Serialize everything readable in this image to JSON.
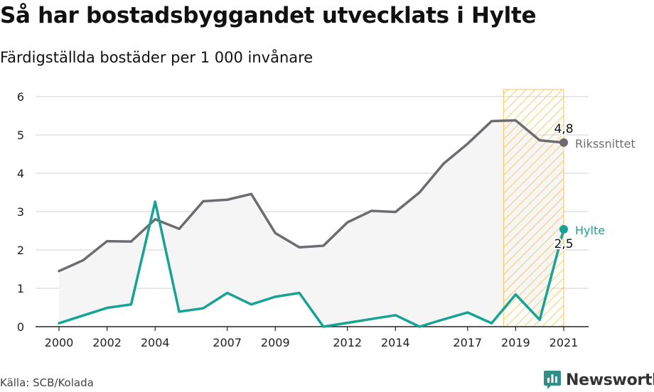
{
  "header": {
    "title": "Så har bostadsbyggandet utvecklats i Hylte",
    "subtitle": "Färdigställda bostäder per 1 000 invånare"
  },
  "footer": {
    "source": "Källa: SCB/Kolada",
    "brand": "Newsworthy"
  },
  "colors": {
    "riket": "#6d6b70",
    "hylte": "#16a394",
    "area_fill": "#f5f5f6",
    "highlight_stroke": "#f5c451",
    "grid": "#d9d9d9",
    "brand_icon": "#2e8f86"
  },
  "icons": {
    "brand": "newsworthy-logo-icon"
  },
  "chart_data": {
    "type": "line",
    "title": "Så har bostadsbyggandet utvecklats i Hylte",
    "subtitle": "Färdigställda bostäder per 1 000 invånare",
    "xlabel": "",
    "ylabel": "",
    "x": [
      2000,
      2001,
      2002,
      2003,
      2004,
      2005,
      2006,
      2007,
      2008,
      2009,
      2010,
      2011,
      2012,
      2013,
      2014,
      2015,
      2016,
      2017,
      2018,
      2019,
      2020,
      2021
    ],
    "x_tick_labels": [
      "2000",
      "2002",
      "2004",
      "2007",
      "2009",
      "2012",
      "2014",
      "2017",
      "2019",
      "2021"
    ],
    "ylim": [
      0,
      6
    ],
    "y_ticks": [
      0,
      1,
      2,
      3,
      4,
      5,
      6
    ],
    "grid": true,
    "highlight_range": [
      2019,
      2021
    ],
    "series": [
      {
        "name": "Rikssnittet",
        "values": [
          1.45,
          1.73,
          2.23,
          2.22,
          2.8,
          2.55,
          3.27,
          3.31,
          3.46,
          2.44,
          2.07,
          2.11,
          2.72,
          3.02,
          2.99,
          3.5,
          4.25,
          4.77,
          5.36,
          5.38,
          4.86,
          4.8
        ],
        "end_label": "4,8"
      },
      {
        "name": "Hylte",
        "values": [
          0.09,
          0.29,
          0.49,
          0.58,
          3.26,
          0.39,
          0.48,
          0.88,
          0.58,
          0.78,
          0.88,
          0.0,
          0.1,
          0.2,
          0.3,
          0.0,
          0.19,
          0.37,
          0.09,
          0.84,
          0.18,
          2.54
        ],
        "end_label": "2,5"
      }
    ]
  }
}
